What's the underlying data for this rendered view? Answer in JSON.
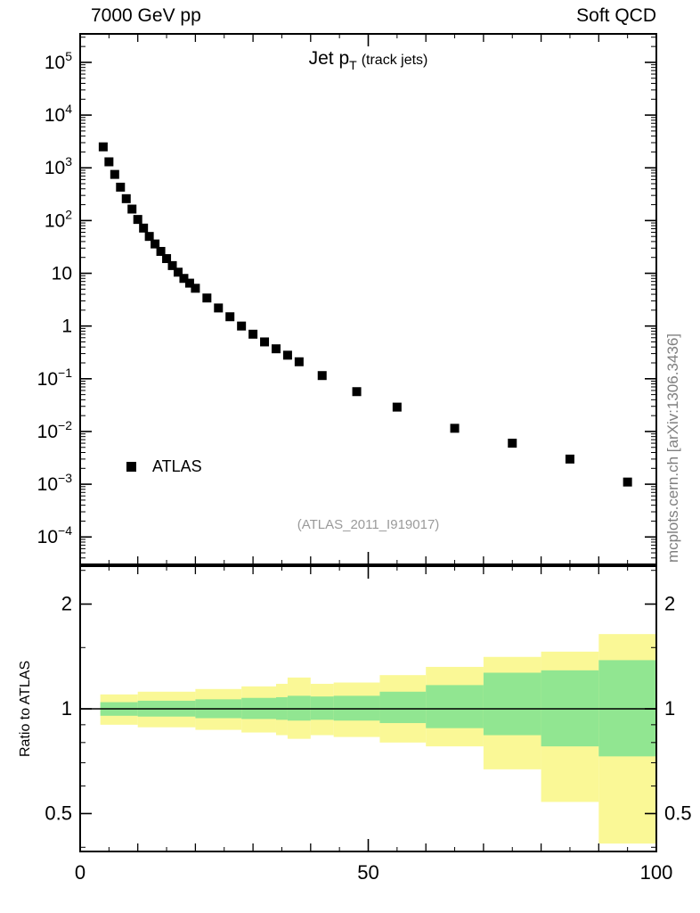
{
  "header": {
    "left": "7000 GeV pp",
    "right": "Soft QCD"
  },
  "title": {
    "main": "Jet p",
    "sub": "T",
    "suffix": "(track jets)"
  },
  "legend": {
    "label": "ATLAS",
    "marker": "filled-square",
    "marker_color": "#000000"
  },
  "analysis_tag": "(ATLAS_2011_I919017)",
  "watermark": "mcplots.cern.ch [arXiv:1306.3436]",
  "ratio_axis_label": "Ratio to ATLAS",
  "colors": {
    "frame": "#000000",
    "marker": "#000000",
    "outer_band": "#faf896",
    "inner_band": "#91e691",
    "tag_gray": "#9a9a9a",
    "watermark_gray": "#7f7f7f"
  },
  "chart_data": {
    "type": "scatter",
    "title": "Jet pT (track jets)",
    "x_axis": {
      "range": [
        0,
        100
      ],
      "major_ticks": [
        0,
        50,
        100
      ],
      "major_tick_labels": [
        "0",
        "50",
        "100"
      ],
      "medium_tick_step": 10,
      "minor_tick_step": 5
    },
    "main_y_axis": {
      "scale": "log",
      "log10_range": [
        -4.52,
        5.54
      ],
      "tick_exponents": [
        -4,
        -3,
        -2,
        -1,
        0,
        1,
        2,
        3,
        4,
        5
      ]
    },
    "series": [
      {
        "name": "ATLAS",
        "marker": "filled-square",
        "color": "#000000",
        "x": [
          4,
          5,
          6,
          7,
          8,
          9,
          10,
          11,
          12,
          13,
          14,
          15,
          16,
          17,
          18,
          19,
          20,
          22,
          24,
          26,
          28,
          30,
          32,
          34,
          36,
          38,
          42,
          48,
          55,
          65,
          75,
          85,
          95
        ],
        "y": [
          2500,
          1300,
          750,
          430,
          260,
          165,
          105,
          72,
          50,
          36,
          26,
          19,
          14,
          10.5,
          8,
          6.5,
          5.2,
          3.4,
          2.2,
          1.5,
          1.0,
          0.7,
          0.5,
          0.37,
          0.28,
          0.21,
          0.115,
          0.057,
          0.029,
          0.0115,
          0.006,
          0.003,
          0.0011
        ]
      }
    ],
    "ratio_panel": {
      "ylabel": "Ratio to ATLAS",
      "scale": "log",
      "log10_range": [
        -0.41,
        0.41
      ],
      "labeled_ticks": [
        0.5,
        1,
        2
      ],
      "labeled_tick_labels": [
        "0.5",
        "1",
        "2"
      ],
      "minor_ticks": [
        0.4,
        0.6,
        0.7,
        0.8,
        0.9,
        1.5,
        2.5
      ],
      "reference_line": 1,
      "band_edges": [
        3.5,
        10,
        20,
        28,
        34,
        36,
        40,
        44,
        52,
        60,
        70,
        80,
        90,
        100
      ],
      "outer_band": {
        "color": "#faf896",
        "lo": [
          0.9,
          0.885,
          0.87,
          0.855,
          0.84,
          0.82,
          0.84,
          0.83,
          0.8,
          0.78,
          0.67,
          0.54,
          0.41
        ],
        "hi": [
          1.1,
          1.12,
          1.14,
          1.16,
          1.18,
          1.23,
          1.18,
          1.19,
          1.25,
          1.32,
          1.41,
          1.46,
          1.64
        ]
      },
      "inner_band": {
        "color": "#91e691",
        "lo": [
          0.955,
          0.95,
          0.94,
          0.935,
          0.93,
          0.925,
          0.93,
          0.925,
          0.91,
          0.88,
          0.84,
          0.78,
          0.73
        ],
        "hi": [
          1.045,
          1.055,
          1.065,
          1.075,
          1.08,
          1.09,
          1.085,
          1.09,
          1.12,
          1.17,
          1.27,
          1.29,
          1.38
        ]
      }
    }
  }
}
